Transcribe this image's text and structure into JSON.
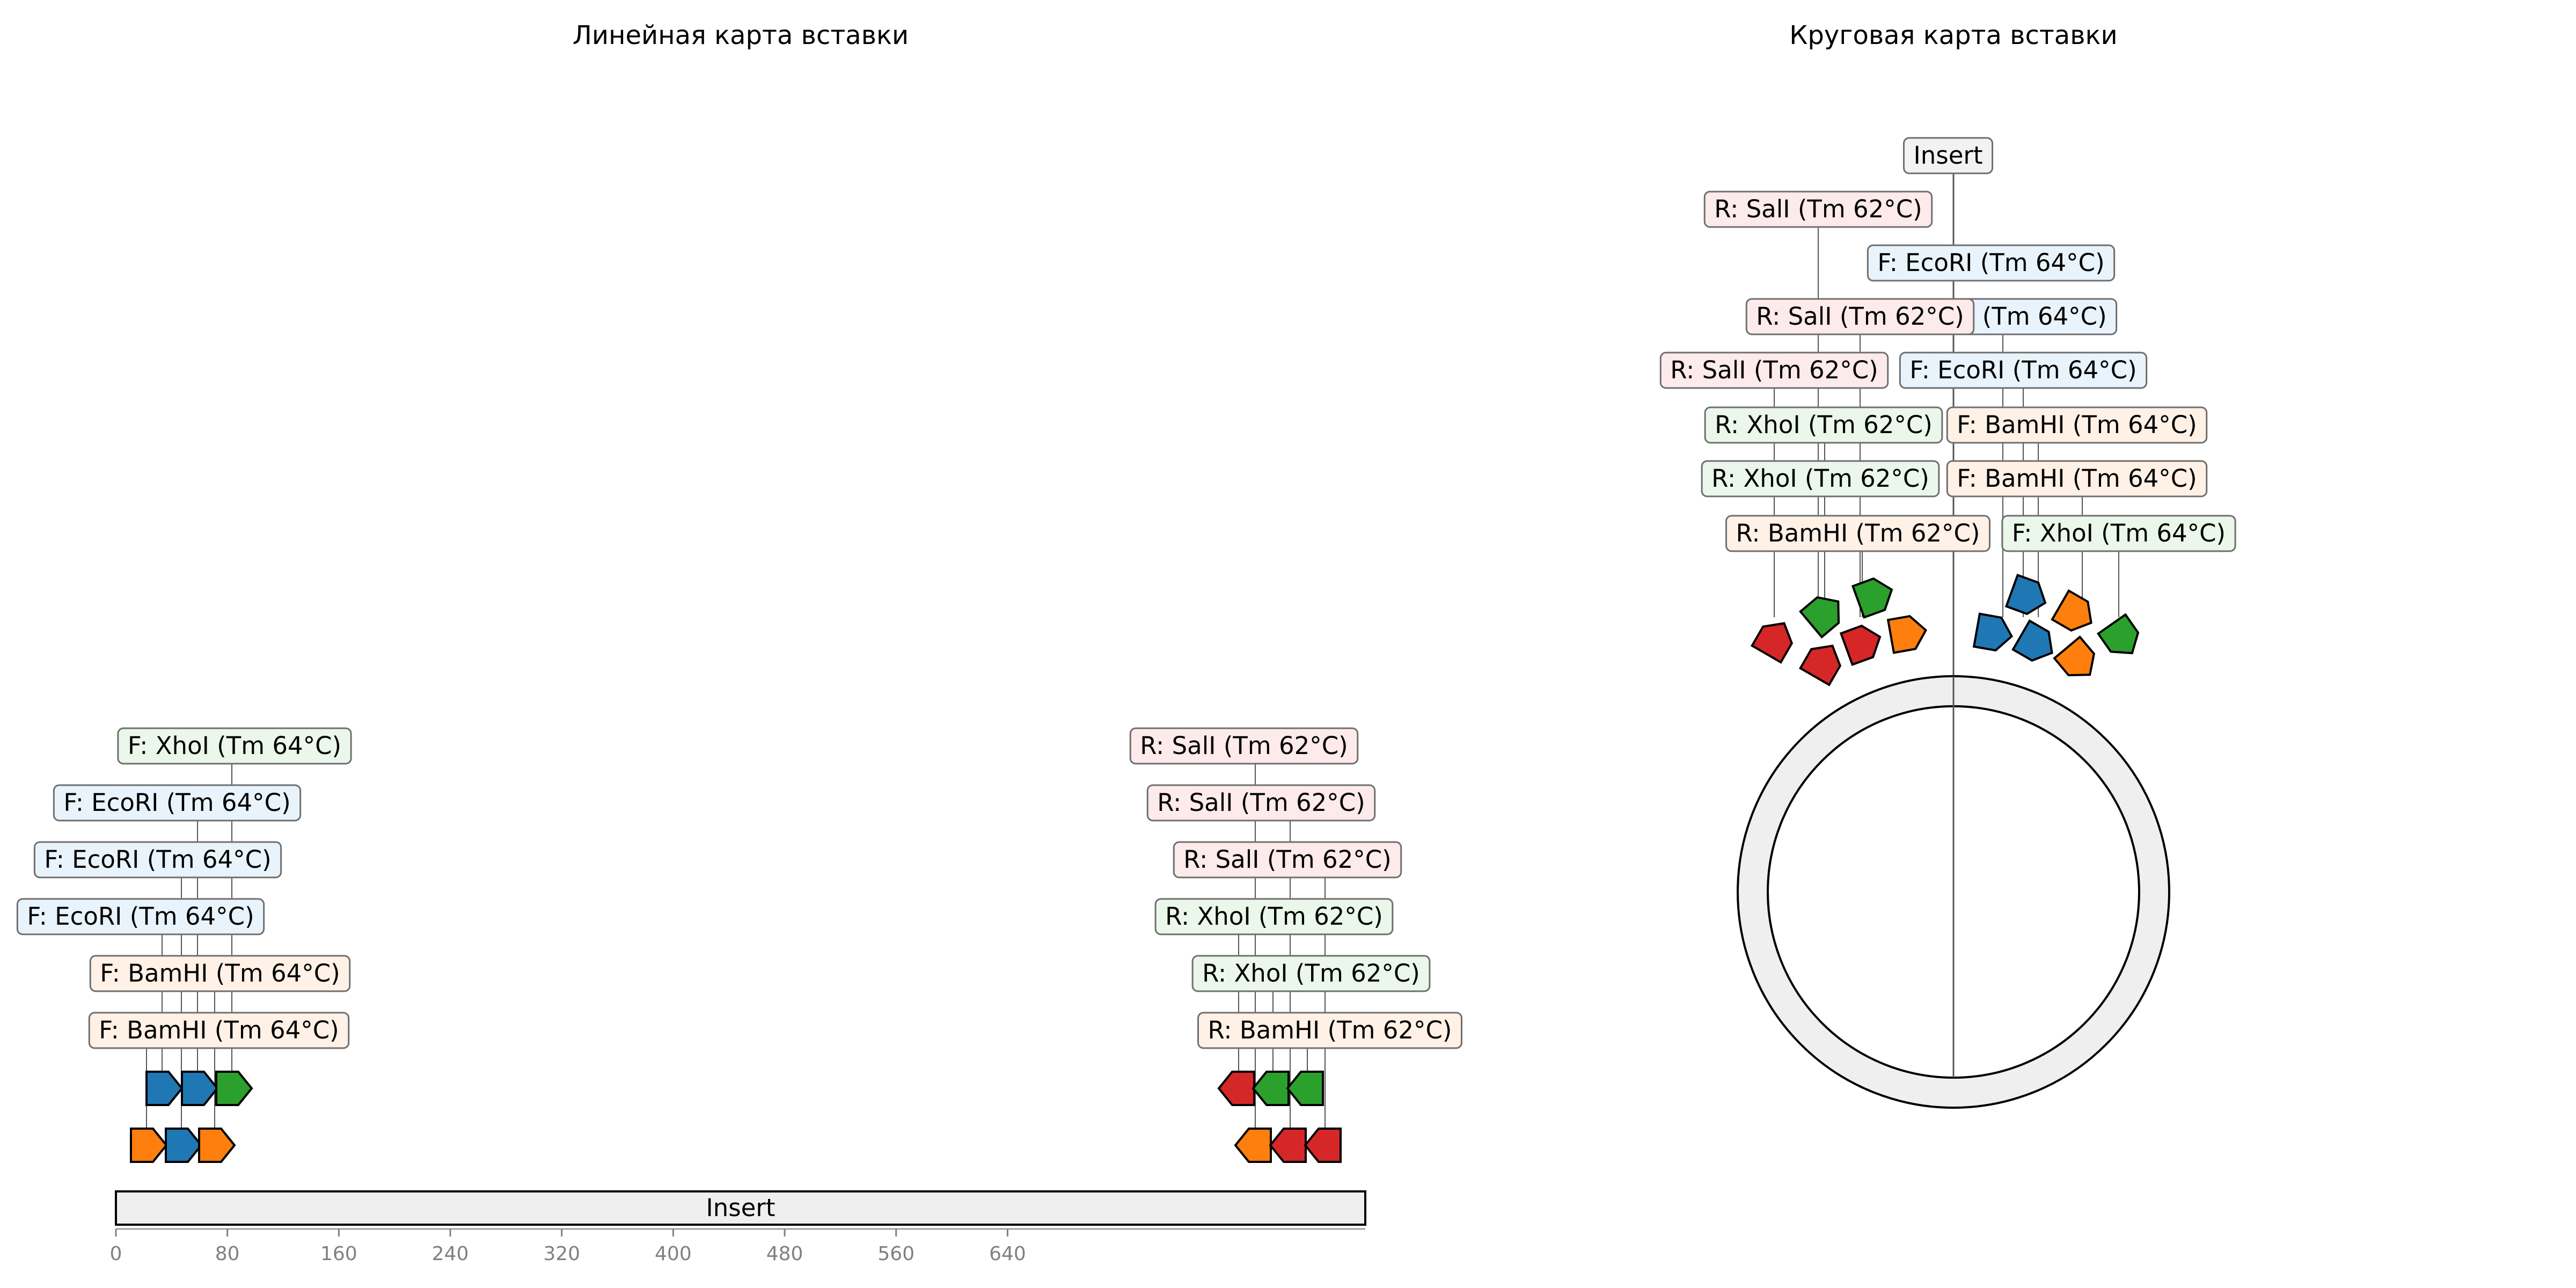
{
  "titles": {
    "linear": "Линейная карта вставки",
    "circular": "Круговая карта вставки"
  },
  "insert_label": "Insert",
  "axis": {
    "ticks": [
      "0",
      "80",
      "160",
      "240",
      "320",
      "400",
      "480",
      "560",
      "640"
    ]
  },
  "colors": {
    "BamHI": "#ff7f0e",
    "EcoRI": "#1f77b4",
    "XhoI": "#2ca02c",
    "SalI": "#d62728",
    "bg_BamHI": "#fff1e6",
    "bg_EcoRI": "#e9f3fb",
    "bg_XhoI": "#eaf7ea",
    "bg_SalI": "#fdeaea",
    "insert_fill": "#efefef"
  },
  "linear": {
    "forward_labels": [
      {
        "text": "F: BamHI (Tm 64°C)",
        "enzyme": "BamHI"
      },
      {
        "text": "F: BamHI (Tm 64°C)",
        "enzyme": "BamHI"
      },
      {
        "text": "F: EcoRI (Tm 64°C)",
        "enzyme": "EcoRI"
      },
      {
        "text": "F: EcoRI (Tm 64°C)",
        "enzyme": "EcoRI"
      },
      {
        "text": "F: EcoRI (Tm 64°C)",
        "enzyme": "EcoRI"
      },
      {
        "text": "F: XhoI (Tm 64°C)",
        "enzyme": "XhoI"
      }
    ],
    "reverse_labels": [
      {
        "text": "R: BamHI (Tm 62°C)",
        "enzyme": "BamHI"
      },
      {
        "text": "R: XhoI (Tm 62°C)",
        "enzyme": "XhoI"
      },
      {
        "text": "R: XhoI (Tm 62°C)",
        "enzyme": "XhoI"
      },
      {
        "text": "R: SalI (Tm 62°C)",
        "enzyme": "SalI"
      },
      {
        "text": "R: SalI (Tm 62°C)",
        "enzyme": "SalI"
      },
      {
        "text": "R: SalI (Tm 62°C)",
        "enzyme": "SalI"
      }
    ]
  },
  "circular": {
    "labels": [
      {
        "text": "Insert",
        "enzyme": "none"
      },
      {
        "text": "R: SalI (Tm 62°C)",
        "enzyme": "SalI"
      },
      {
        "text": "F: EcoRI (Tm 64°C)",
        "enzyme": "EcoRI"
      },
      {
        "text": "F: EcoRI (Tm 64°C)",
        "enzyme": "EcoRI"
      },
      {
        "text": "R: SalI (Tm 62°C)",
        "enzyme": "SalI"
      },
      {
        "text": "R: SalI (Tm 62°C)",
        "enzyme": "SalI"
      },
      {
        "text": "F: EcoRI (Tm 64°C)",
        "enzyme": "EcoRI"
      },
      {
        "text": "R: XhoI (Tm 62°C)",
        "enzyme": "XhoI"
      },
      {
        "text": "F: BamHI (Tm 64°C)",
        "enzyme": "BamHI"
      },
      {
        "text": "R: XhoI (Tm 62°C)",
        "enzyme": "XhoI"
      },
      {
        "text": "F: BamHI (Tm 64°C)",
        "enzyme": "BamHI"
      },
      {
        "text": "R: BamHI (Tm 62°C)",
        "enzyme": "BamHI"
      },
      {
        "text": "F: XhoI (Tm 64°C)",
        "enzyme": "XhoI"
      }
    ]
  }
}
